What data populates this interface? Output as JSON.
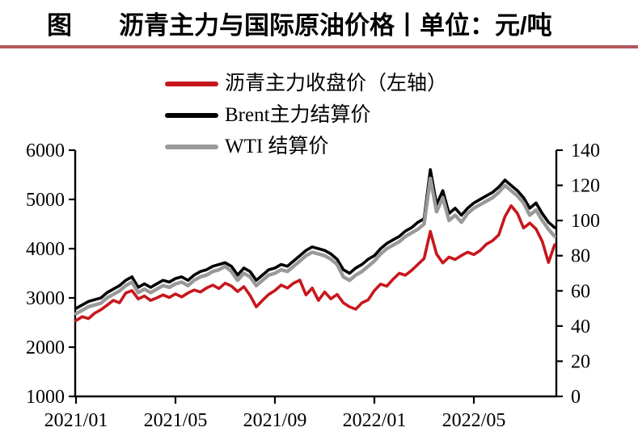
{
  "title": {
    "prefix": "图",
    "text": "沥青主力与国际原油价格丨单位：元/吨"
  },
  "accent_rule_color": "#B2575B",
  "legend": {
    "items": [
      {
        "label": "沥青主力收盘价（左轴）",
        "color": "#C8161D"
      },
      {
        "label": "Brent主力结算价",
        "color": "#000000"
      },
      {
        "label": "WTI 结算价",
        "color": "#999999"
      }
    ]
  },
  "chart_data": {
    "type": "line",
    "title": "沥青主力与国际原油价格",
    "unit_label": "元/吨",
    "x_unit": "months since 2021/01",
    "x_tick_months": [
      0,
      4,
      8,
      12,
      16
    ],
    "x_tick_labels": [
      "2021/01",
      "2021/05",
      "2021/09",
      "2022/01",
      "2022/05"
    ],
    "left_axis": {
      "label": "沥青主力收盘价",
      "range": [
        1000,
        6000
      ],
      "ticks": [
        6000,
        5000,
        4000,
        3000,
        2000,
        1000
      ],
      "tick_labels": [
        "6000",
        "5000",
        "4000",
        "3000",
        "2000",
        "1000"
      ]
    },
    "right_axis": {
      "label": "原油价格",
      "range": [
        0,
        140
      ],
      "ticks": [
        140,
        120,
        100,
        80,
        60,
        40,
        20,
        0
      ],
      "tick_labels": [
        "140",
        "120",
        "100",
        "80",
        "60",
        "40",
        "20",
        "0"
      ]
    },
    "grid": false,
    "legend_position": "top-left",
    "x_months": [
      0,
      0.25,
      0.5,
      0.75,
      1,
      1.25,
      1.5,
      1.75,
      2,
      2.25,
      2.5,
      2.75,
      3,
      3.25,
      3.5,
      3.75,
      4,
      4.25,
      4.5,
      4.75,
      5,
      5.25,
      5.5,
      5.75,
      6,
      6.25,
      6.5,
      6.75,
      7,
      7.25,
      7.5,
      7.75,
      8,
      8.25,
      8.5,
      8.75,
      9,
      9.25,
      9.5,
      9.75,
      10,
      10.25,
      10.5,
      10.75,
      11,
      11.25,
      11.5,
      11.75,
      12,
      12.25,
      12.5,
      12.75,
      13,
      13.25,
      13.5,
      13.75,
      14,
      14.25,
      14.5,
      14.75,
      15,
      15.25,
      15.5,
      15.75,
      16,
      16.25,
      16.5,
      16.75,
      17,
      17.25,
      17.5,
      17.75,
      18,
      18.25,
      18.5,
      18.75,
      19,
      19.25
    ],
    "series": [
      {
        "name": "沥青主力收盘价（左轴）",
        "axis": "left",
        "color": "#C8161D",
        "stroke_width": 3.6,
        "values": [
          2540,
          2620,
          2580,
          2690,
          2760,
          2850,
          2950,
          2900,
          3100,
          3150,
          2980,
          3040,
          2950,
          3000,
          3060,
          3010,
          3080,
          3020,
          3100,
          3160,
          3120,
          3200,
          3260,
          3190,
          3300,
          3240,
          3130,
          3230,
          3050,
          2820,
          2950,
          3070,
          3150,
          3260,
          3200,
          3300,
          3360,
          3060,
          3200,
          2950,
          3120,
          2980,
          3070,
          2900,
          2820,
          2770,
          2900,
          2960,
          3150,
          3280,
          3240,
          3380,
          3500,
          3460,
          3560,
          3680,
          3800,
          4350,
          3890,
          3710,
          3830,
          3780,
          3860,
          3930,
          3880,
          3960,
          4090,
          4160,
          4280,
          4650,
          4870,
          4720,
          4420,
          4520,
          4400,
          4150,
          3720,
          4080
        ]
      },
      {
        "name": "Brent主力结算价",
        "axis": "right",
        "color": "#000000",
        "stroke_width": 3.6,
        "values": [
          50,
          52,
          54,
          55,
          56,
          59,
          61,
          63,
          66,
          68,
          62,
          64,
          62,
          64,
          66,
          65,
          67,
          68,
          66,
          69,
          71,
          72,
          74,
          75,
          76,
          74,
          69,
          73,
          71,
          66,
          69,
          72,
          73,
          75,
          74,
          77,
          80,
          83,
          85,
          84,
          83,
          81,
          78,
          72,
          70,
          73,
          75,
          78,
          80,
          84,
          87,
          89,
          91,
          94,
          96,
          99,
          101,
          129,
          109,
          117,
          104,
          107,
          103,
          107,
          110,
          112,
          114,
          116,
          119,
          123,
          120,
          117,
          113,
          107,
          110,
          104,
          99,
          96
        ]
      },
      {
        "name": "WTI 结算价",
        "axis": "right",
        "color": "#999999",
        "stroke_width": 4.4,
        "values": [
          47,
          49,
          51,
          52,
          53,
          56,
          58,
          60,
          63,
          65,
          59,
          61,
          59,
          61,
          63,
          62,
          64,
          65,
          63,
          66,
          68,
          69,
          71,
          72,
          74,
          71,
          66,
          70,
          68,
          63,
          66,
          69,
          70,
          72,
          71,
          74,
          77,
          80,
          82,
          81,
          80,
          78,
          75,
          68,
          66,
          69,
          71,
          74,
          77,
          81,
          84,
          86,
          88,
          91,
          93,
          95,
          98,
          124,
          105,
          113,
          100,
          103,
          99,
          104,
          107,
          109,
          111,
          113,
          116,
          120,
          117,
          114,
          110,
          103,
          106,
          100,
          95,
          91
        ]
      }
    ]
  }
}
